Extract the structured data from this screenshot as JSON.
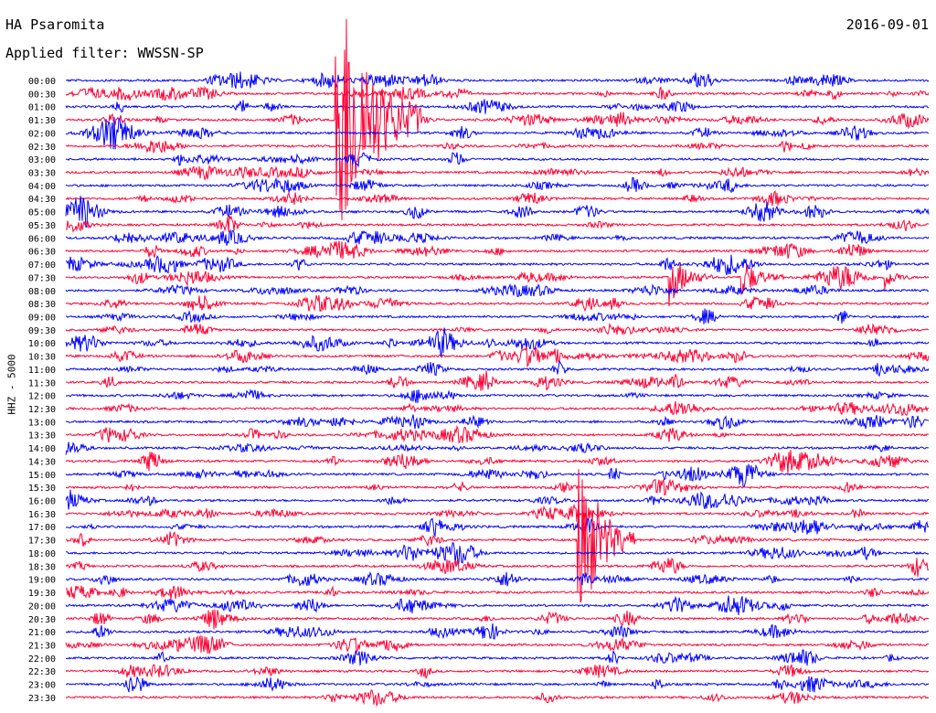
{
  "header": {
    "station": "HA Psaromita",
    "date": "2016-09-01",
    "filter": "Applied filter: WWSSN-SP",
    "channel": "HHZ - 5000"
  },
  "colors": {
    "even": "#0000ff",
    "odd": "#ff0033",
    "text": "#000000"
  },
  "chart_data": {
    "type": "line",
    "title": "HA Psaromita",
    "ylabel": "HHZ - 5000",
    "rows": [
      "00:00",
      "00:30",
      "01:00",
      "01:30",
      "02:00",
      "02:30",
      "03:00",
      "03:30",
      "04:00",
      "04:30",
      "05:00",
      "05:30",
      "06:00",
      "06:30",
      "07:00",
      "07:30",
      "08:00",
      "08:30",
      "09:00",
      "09:30",
      "10:00",
      "10:30",
      "11:00",
      "11:30",
      "12:00",
      "12:30",
      "13:00",
      "13:30",
      "14:00",
      "14:30",
      "15:00",
      "15:30",
      "16:00",
      "16:30",
      "17:00",
      "17:30",
      "18:00",
      "18:30",
      "19:00",
      "19:30",
      "20:00",
      "20:30",
      "21:00",
      "21:30",
      "22:00",
      "22:30",
      "23:00",
      "23:30"
    ],
    "row_minutes": 30,
    "events": [
      {
        "row": 3,
        "minute": 9.4,
        "amplitude": 180,
        "duration_min": 3
      },
      {
        "row": 15,
        "minute": 21,
        "amplitude": 30,
        "duration_min": 1.5
      },
      {
        "row": 15,
        "minute": 23.5,
        "amplitude": 22,
        "duration_min": 1.5
      },
      {
        "row": 15,
        "minute": 28.5,
        "amplitude": 12,
        "duration_min": 1
      },
      {
        "row": 35,
        "minute": 17.8,
        "amplitude": 110,
        "duration_min": 2
      }
    ],
    "grid": false,
    "legend": "none"
  }
}
